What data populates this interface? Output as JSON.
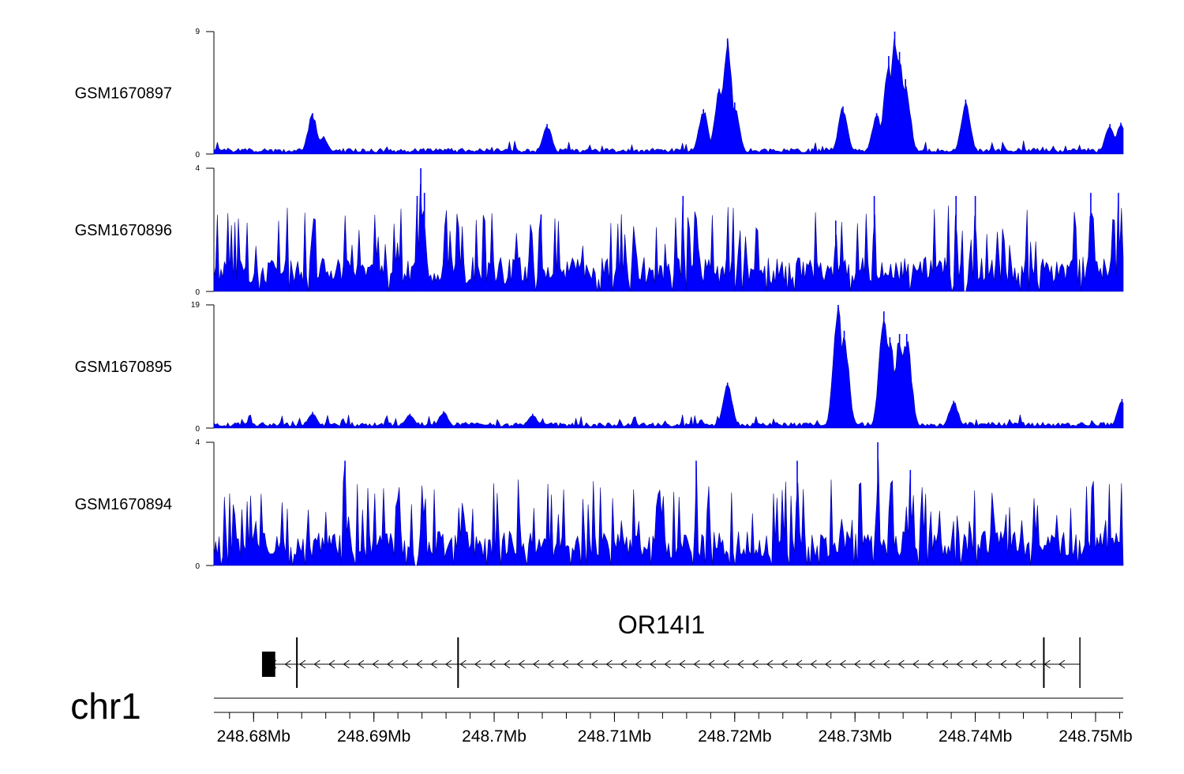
{
  "chart_data": {
    "type": "area",
    "chromosome": "chr1",
    "x_range_mb": [
      248.6767,
      248.7523
    ],
    "series_color": "#0000FF",
    "tracks": [
      {
        "name": "GSM1670897",
        "ylim": [
          0,
          9
        ],
        "ymax_label": "9",
        "ymin_label": "0",
        "peaks": [
          {
            "pos": 248.6849,
            "value": 3.0
          },
          {
            "pos": 248.6858,
            "value": 1.3
          },
          {
            "pos": 248.7044,
            "value": 2.2
          },
          {
            "pos": 248.7174,
            "value": 3.3
          },
          {
            "pos": 248.7187,
            "value": 4.8
          },
          {
            "pos": 248.7194,
            "value": 8.5
          },
          {
            "pos": 248.72,
            "value": 3.8
          },
          {
            "pos": 248.729,
            "value": 3.5
          },
          {
            "pos": 248.7318,
            "value": 3.0
          },
          {
            "pos": 248.7328,
            "value": 7.2
          },
          {
            "pos": 248.7333,
            "value": 9.0
          },
          {
            "pos": 248.7337,
            "value": 7.5
          },
          {
            "pos": 248.7342,
            "value": 5.5
          },
          {
            "pos": 248.7392,
            "value": 4.0
          },
          {
            "pos": 248.7512,
            "value": 2.2
          },
          {
            "pos": 248.7521,
            "value": 2.3
          }
        ]
      },
      {
        "name": "GSM1670896",
        "ylim": [
          0,
          4
        ],
        "ymax_label": "4",
        "ymin_label": "0",
        "peaks": [
          {
            "pos": 248.6936,
            "value": 3.1
          },
          {
            "pos": 248.6939,
            "value": 4.0
          },
          {
            "pos": 248.6942,
            "value": 3.2
          },
          {
            "pos": 248.7039,
            "value": 2.5
          },
          {
            "pos": 248.7157,
            "value": 3.1
          },
          {
            "pos": 248.7284,
            "value": 2.3
          },
          {
            "pos": 248.7316,
            "value": 3.1
          },
          {
            "pos": 248.7384,
            "value": 3.1
          },
          {
            "pos": 248.74,
            "value": 3.1
          },
          {
            "pos": 248.7496,
            "value": 3.2
          },
          {
            "pos": 248.7519,
            "value": 3.2
          }
        ]
      },
      {
        "name": "GSM1670895",
        "ylim": [
          0,
          19
        ],
        "ymax_label": "19",
        "ymin_label": "0",
        "peaks": [
          {
            "pos": 248.6849,
            "value": 2.5
          },
          {
            "pos": 248.693,
            "value": 2.2
          },
          {
            "pos": 248.6958,
            "value": 2.6
          },
          {
            "pos": 248.7032,
            "value": 2.2
          },
          {
            "pos": 248.7194,
            "value": 7.0
          },
          {
            "pos": 248.7286,
            "value": 19.0
          },
          {
            "pos": 248.7291,
            "value": 15.0
          },
          {
            "pos": 248.7324,
            "value": 18.0
          },
          {
            "pos": 248.7329,
            "value": 14.0
          },
          {
            "pos": 248.7337,
            "value": 14.5
          },
          {
            "pos": 248.7343,
            "value": 14.5
          },
          {
            "pos": 248.7382,
            "value": 4.2
          },
          {
            "pos": 248.7522,
            "value": 4.5
          }
        ]
      },
      {
        "name": "GSM1670894",
        "ylim": [
          0,
          4
        ],
        "ymax_label": "4",
        "ymin_label": "0",
        "peaks": [
          {
            "pos": 248.6876,
            "value": 3.4
          },
          {
            "pos": 248.7168,
            "value": 3.4
          },
          {
            "pos": 248.7252,
            "value": 3.4
          },
          {
            "pos": 248.7319,
            "value": 4.0
          },
          {
            "pos": 248.7346,
            "value": 3.1
          }
        ]
      }
    ],
    "gene": {
      "name": "OR14I1",
      "strand": "-",
      "start_mb": 248.6807,
      "end_mb": 248.7487,
      "utr_block": [
        248.6807,
        248.6818
      ],
      "exon_marks_mb": [
        248.6836,
        248.697,
        248.7457
      ]
    },
    "x_axis": {
      "tick_labels": [
        "248.68Mb",
        "248.69Mb",
        "248.7Mb",
        "248.71Mb",
        "248.72Mb",
        "248.73Mb",
        "248.74Mb",
        "248.75Mb"
      ],
      "major_ticks_mb": [
        248.68,
        248.69,
        248.7,
        248.71,
        248.72,
        248.73,
        248.74,
        248.75
      ],
      "minor_step_mb": 0.002
    }
  }
}
